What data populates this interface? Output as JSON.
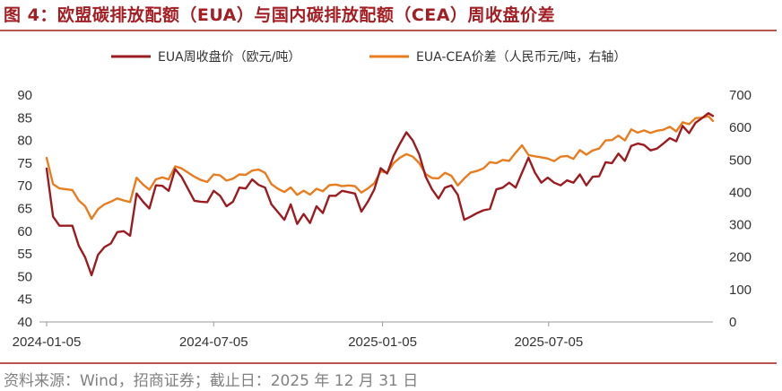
{
  "title": "图 4：欧盟碳排放配额（EUA）与国内碳排放配额（CEA）周收盘价差",
  "source": "资料来源：Wind，招商证券；截止日：2025 年 12 月 31 日",
  "colors": {
    "eua": "#9b1c20",
    "spread": "#e87c1e",
    "accent": "#a31e23",
    "rule": "#b8554f"
  },
  "chart_data": {
    "type": "line",
    "left_axis": {
      "min": 40,
      "max": 90,
      "step": 5,
      "ticks": [
        "40",
        "45",
        "50",
        "55",
        "60",
        "65",
        "70",
        "75",
        "80",
        "85",
        "90"
      ]
    },
    "right_axis": {
      "min": 0,
      "max": 700,
      "step": 100,
      "ticks": [
        "0",
        "100",
        "200",
        "300",
        "400",
        "500",
        "600",
        "700"
      ]
    },
    "x_axis": {
      "start": "2024-01-05",
      "end": "2025-12-31",
      "tick_labels": [
        "2024-01-05",
        "2024-07-05",
        "2025-01-05",
        "2025-07-05"
      ]
    },
    "legend_position": "top",
    "series": [
      {
        "name": "EUA周收盘价（欧元/吨）",
        "axis": "left",
        "color": "#9b1c20",
        "dates": [
          "2024-01-05",
          "2024-01-12",
          "2024-01-19",
          "2024-02-02",
          "2024-02-09",
          "2024-02-16",
          "2024-02-23",
          "2024-03-01",
          "2024-03-08",
          "2024-03-15",
          "2024-03-22",
          "2024-03-29",
          "2024-04-05",
          "2024-04-12",
          "2024-04-19",
          "2024-04-26",
          "2024-05-03",
          "2024-05-10",
          "2024-05-17",
          "2024-05-24",
          "2024-05-31",
          "2024-06-14",
          "2024-06-21",
          "2024-06-28",
          "2024-07-05",
          "2024-07-12",
          "2024-07-19",
          "2024-07-26",
          "2024-08-02",
          "2024-08-09",
          "2024-08-16",
          "2024-08-23",
          "2024-08-30",
          "2024-09-06",
          "2024-09-13",
          "2024-09-20",
          "2024-09-27",
          "2024-10-04",
          "2024-10-11",
          "2024-10-18",
          "2024-10-25",
          "2024-11-01",
          "2024-11-08",
          "2024-11-15",
          "2024-11-22",
          "2024-11-29",
          "2024-12-06",
          "2024-12-13",
          "2024-12-20",
          "2024-12-27",
          "2025-01-03",
          "2025-01-10",
          "2025-01-17",
          "2025-01-24",
          "2025-01-31",
          "2025-02-07",
          "2025-02-14",
          "2025-02-21",
          "2025-02-28",
          "2025-03-07",
          "2025-03-14",
          "2025-03-21",
          "2025-03-28",
          "2025-04-04",
          "2025-04-11",
          "2025-04-18",
          "2025-04-25",
          "2025-05-02",
          "2025-05-09",
          "2025-05-16",
          "2025-05-23",
          "2025-05-30",
          "2025-06-06",
          "2025-06-13",
          "2025-06-20",
          "2025-06-27",
          "2025-07-04",
          "2025-07-11",
          "2025-07-18",
          "2025-07-25",
          "2025-08-01",
          "2025-08-08",
          "2025-08-15",
          "2025-08-22",
          "2025-08-29",
          "2025-09-05",
          "2025-09-12",
          "2025-09-19",
          "2025-09-26",
          "2025-10-03",
          "2025-10-10",
          "2025-10-17",
          "2025-10-24",
          "2025-10-31",
          "2025-11-07",
          "2025-11-14",
          "2025-11-21",
          "2025-11-28",
          "2025-12-05",
          "2025-12-12",
          "2025-12-19",
          "2025-12-26",
          "2025-12-31"
        ],
        "values": [
          73.8,
          63.2,
          61.2,
          61.2,
          56.8,
          54.2,
          50.3,
          54.8,
          56.5,
          57.3,
          59.8,
          60.0,
          59.0,
          68.3,
          66.5,
          65.0,
          70.1,
          70.0,
          68.9,
          73.7,
          72.0,
          66.7,
          66.5,
          66.4,
          68.9,
          67.8,
          65.5,
          66.5,
          69.6,
          69.4,
          71.4,
          70.2,
          69.6,
          65.9,
          64.2,
          62.5,
          65.9,
          61.6,
          63.8,
          61.8,
          65.5,
          64.0,
          67.8,
          67.8,
          68.9,
          68.6,
          68.3,
          64.3,
          66.5,
          69.2,
          73.9,
          72.7,
          76.6,
          79.3,
          81.8,
          80.0,
          76.9,
          72.0,
          69.2,
          67.2,
          69.6,
          70.1,
          68.0,
          62.5,
          63.2,
          64.0,
          64.6,
          64.9,
          69.2,
          69.6,
          70.7,
          69.6,
          72.9,
          76.2,
          72.9,
          70.7,
          71.8,
          70.7,
          70.1,
          71.2,
          70.7,
          72.5,
          70.1,
          72.0,
          72.1,
          75.2,
          75.0,
          77.1,
          75.5,
          78.8,
          79.3,
          79.0,
          77.8,
          78.2,
          79.3,
          80.5,
          79.8,
          83.2,
          81.6,
          83.9,
          84.9,
          86.0,
          85.4
        ]
      },
      {
        "name": "EUA-CEA价差（人民币元/吨，右轴）",
        "axis": "right",
        "color": "#e87c1e",
        "dates": [
          "2024-01-05",
          "2024-01-12",
          "2024-01-19",
          "2024-02-02",
          "2024-02-09",
          "2024-02-16",
          "2024-02-23",
          "2024-03-01",
          "2024-03-08",
          "2024-03-15",
          "2024-03-22",
          "2024-03-29",
          "2024-04-05",
          "2024-04-12",
          "2024-04-19",
          "2024-04-26",
          "2024-05-03",
          "2024-05-10",
          "2024-05-17",
          "2024-05-24",
          "2024-05-31",
          "2024-06-14",
          "2024-06-21",
          "2024-06-28",
          "2024-07-05",
          "2024-07-12",
          "2024-07-19",
          "2024-07-26",
          "2024-08-02",
          "2024-08-09",
          "2024-08-16",
          "2024-08-23",
          "2024-08-30",
          "2024-09-06",
          "2024-09-13",
          "2024-09-20",
          "2024-09-27",
          "2024-10-04",
          "2024-10-11",
          "2024-10-18",
          "2024-10-25",
          "2024-11-01",
          "2024-11-08",
          "2024-11-15",
          "2024-11-22",
          "2024-11-29",
          "2024-12-06",
          "2024-12-13",
          "2024-12-20",
          "2024-12-27",
          "2025-01-03",
          "2025-01-10",
          "2025-01-17",
          "2025-01-24",
          "2025-01-31",
          "2025-02-07",
          "2025-02-14",
          "2025-02-21",
          "2025-02-28",
          "2025-03-07",
          "2025-03-14",
          "2025-03-21",
          "2025-03-28",
          "2025-04-04",
          "2025-04-11",
          "2025-04-18",
          "2025-04-25",
          "2025-05-02",
          "2025-05-09",
          "2025-05-16",
          "2025-05-23",
          "2025-05-30",
          "2025-06-06",
          "2025-06-13",
          "2025-06-20",
          "2025-06-27",
          "2025-07-04",
          "2025-07-11",
          "2025-07-18",
          "2025-07-25",
          "2025-08-01",
          "2025-08-08",
          "2025-08-15",
          "2025-08-22",
          "2025-08-29",
          "2025-09-05",
          "2025-09-12",
          "2025-09-19",
          "2025-09-26",
          "2025-10-03",
          "2025-10-10",
          "2025-10-17",
          "2025-10-24",
          "2025-10-31",
          "2025-11-07",
          "2025-11-14",
          "2025-11-21",
          "2025-11-28",
          "2025-12-05",
          "2025-12-12",
          "2025-12-19",
          "2025-12-26",
          "2025-12-31"
        ],
        "values": [
          506,
          425,
          412,
          407,
          375,
          357,
          318,
          348,
          363,
          371,
          381,
          375,
          370,
          445,
          424,
          408,
          440,
          446,
          440,
          480,
          474,
          448,
          438,
          432,
          455,
          452,
          436,
          442,
          455,
          454,
          467,
          470,
          460,
          425,
          411,
          401,
          415,
          392,
          405,
          393,
          411,
          403,
          422,
          424,
          419,
          421,
          419,
          399,
          412,
          428,
          465,
          460,
          490,
          507,
          518,
          510,
          490,
          456,
          444,
          443,
          460,
          451,
          421,
          443,
          461,
          466,
          474,
          493,
          490,
          500,
          497,
          522,
          545,
          515,
          511,
          508,
          504,
          496,
          510,
          512,
          503,
          530,
          516,
          529,
          535,
          560,
          561,
          575,
          560,
          594,
          584,
          591,
          583,
          590,
          593,
          602,
          588,
          616,
          610,
          629,
          630,
          635,
          620
        ]
      }
    ]
  }
}
